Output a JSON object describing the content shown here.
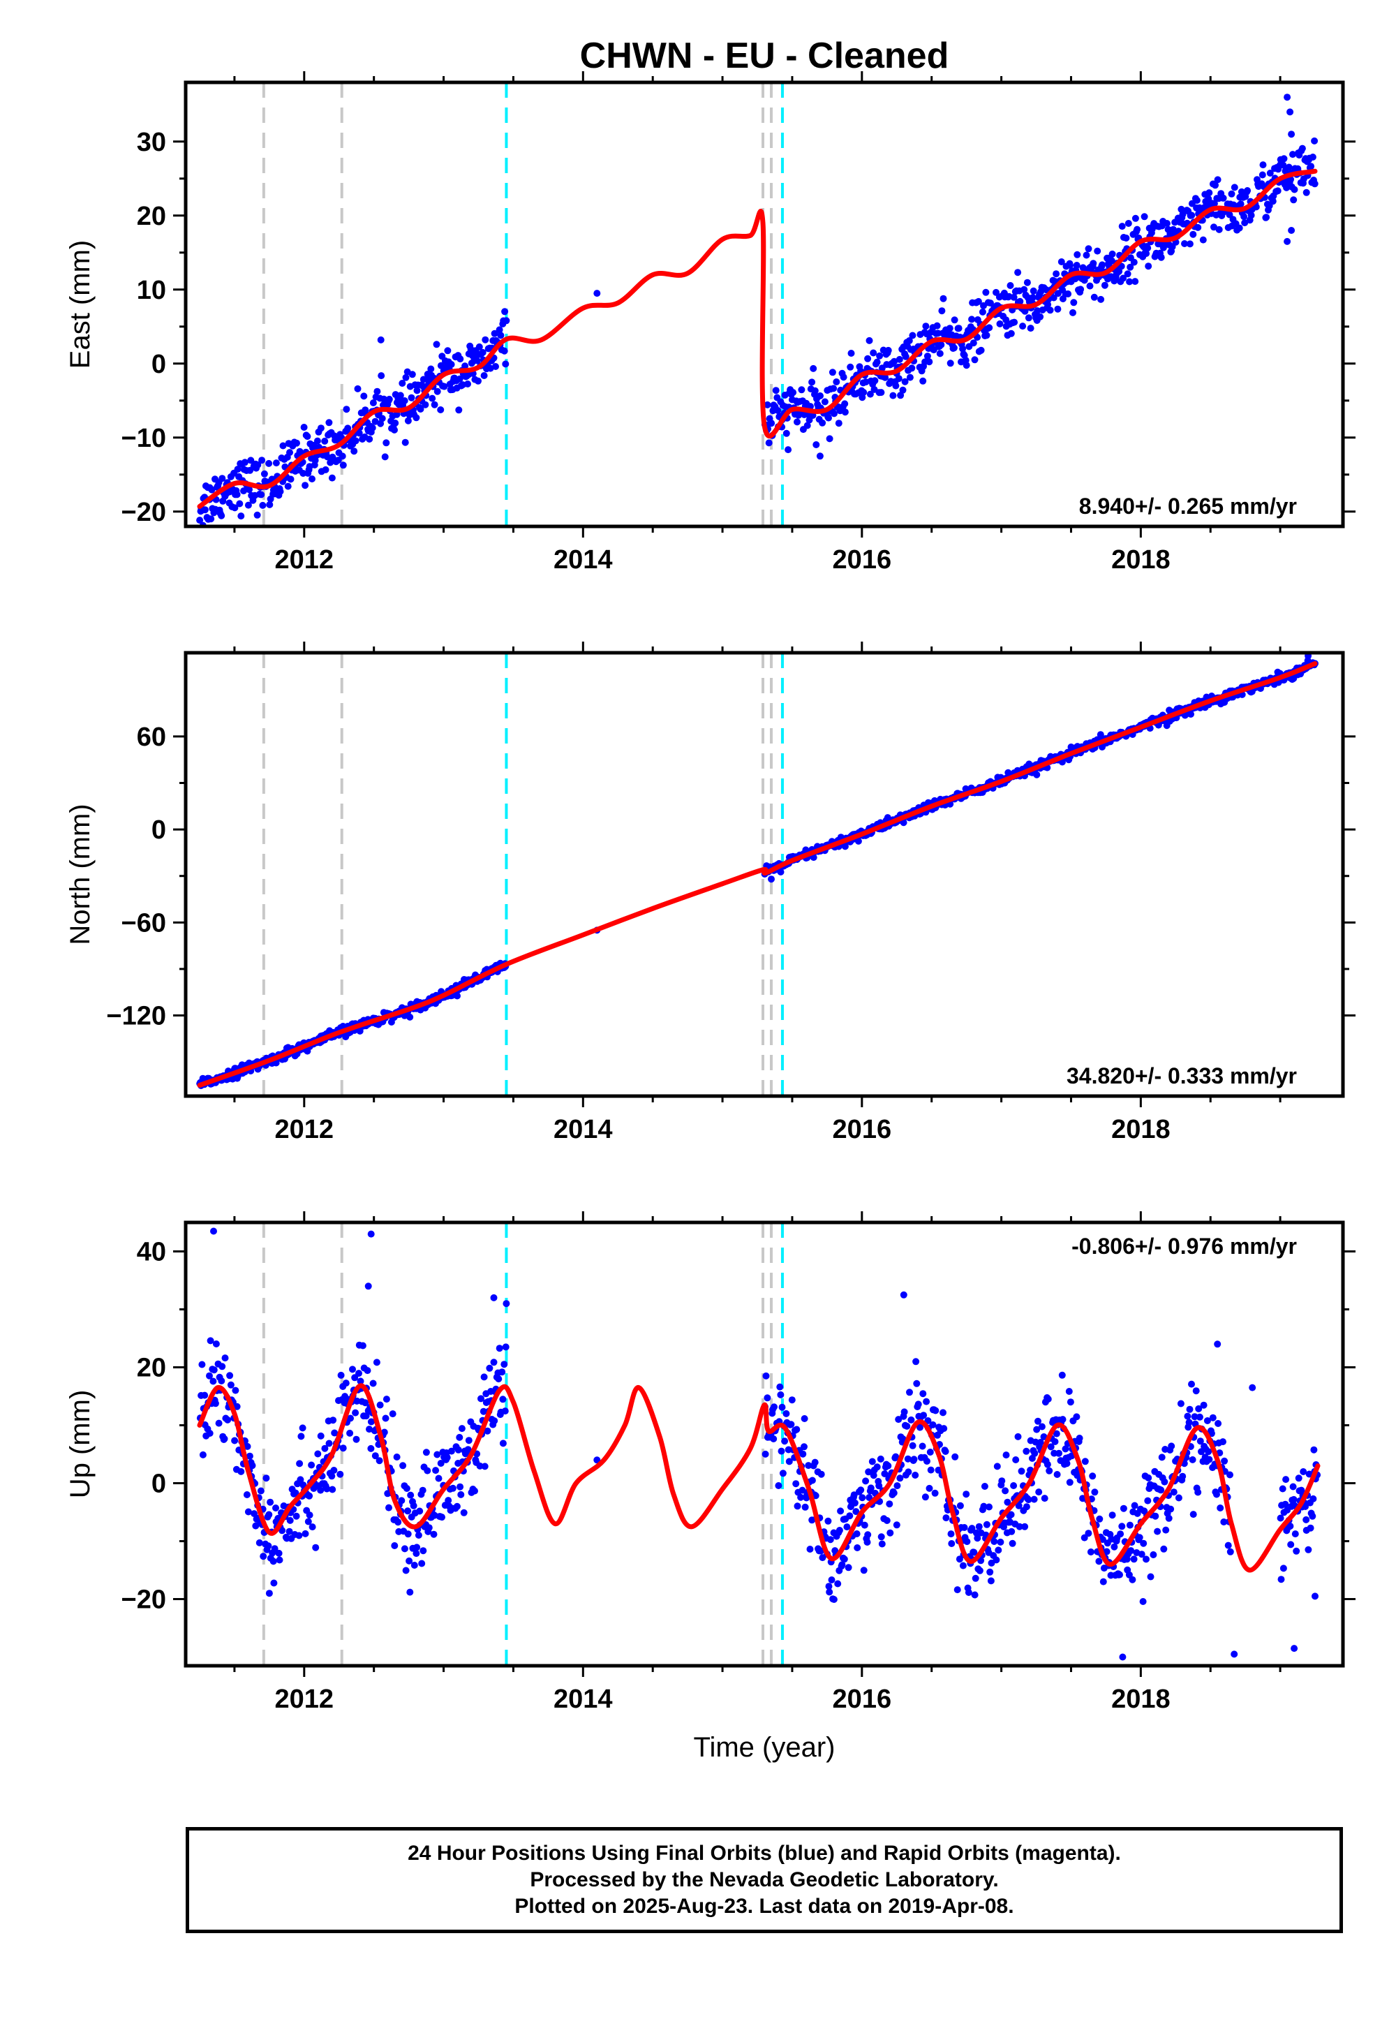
{
  "title": "CHWN  - EU - Cleaned",
  "xlabel": "Time (year)",
  "colors": {
    "final_points": "#0000ff",
    "model_fit": "#ff0000",
    "gray_marker": "#c8c8c8",
    "cyan_marker": "#00f0ff",
    "frame": "#000000"
  },
  "x_range": [
    2011.15,
    2019.45
  ],
  "x_ticks": [
    2012,
    2014,
    2016,
    2018
  ],
  "markers": {
    "gray": [
      2011.71,
      2012.27,
      2015.29,
      2015.35
    ],
    "cyan": [
      2013.45,
      2015.43
    ]
  },
  "chart_data": [
    {
      "type": "scatter",
      "name": "east",
      "ylabel": "East (mm)",
      "ylim": [
        -22,
        38
      ],
      "yticks": [
        -20,
        -10,
        0,
        10,
        20,
        30
      ],
      "ytick_labels": [
        "−20",
        "−10",
        "0",
        "10",
        "20",
        "30"
      ],
      "rate_label": "8.940+/- 0.265 mm/yr",
      "rate_position": "bottom-right",
      "trend": [
        {
          "x": 2011.25,
          "y": -19.3
        },
        {
          "x": 2011.5,
          "y": -16.2
        },
        {
          "x": 2011.75,
          "y": -16.5
        },
        {
          "x": 2012.0,
          "y": -12.5
        },
        {
          "x": 2012.25,
          "y": -11.0
        },
        {
          "x": 2012.5,
          "y": -6.5
        },
        {
          "x": 2012.75,
          "y": -6.0
        },
        {
          "x": 2013.0,
          "y": -1.5
        },
        {
          "x": 2013.25,
          "y": -0.5
        },
        {
          "x": 2013.45,
          "y": 3.3
        },
        {
          "x": 2013.7,
          "y": 3.2
        },
        {
          "x": 2014.0,
          "y": 7.5
        },
        {
          "x": 2014.25,
          "y": 8.2
        },
        {
          "x": 2014.5,
          "y": 12.0
        },
        {
          "x": 2014.75,
          "y": 12.2
        },
        {
          "x": 2015.0,
          "y": 16.8
        },
        {
          "x": 2015.2,
          "y": 17.3
        },
        {
          "x": 2015.29,
          "y": 19.0
        },
        {
          "x": 2015.3,
          "y": -8.3
        },
        {
          "x": 2015.5,
          "y": -6.2
        },
        {
          "x": 2015.75,
          "y": -6.2
        },
        {
          "x": 2016.0,
          "y": -1.5
        },
        {
          "x": 2016.25,
          "y": -1.0
        },
        {
          "x": 2016.5,
          "y": 3.0
        },
        {
          "x": 2016.75,
          "y": 3.3
        },
        {
          "x": 2017.0,
          "y": 7.5
        },
        {
          "x": 2017.25,
          "y": 8.0
        },
        {
          "x": 2017.5,
          "y": 12.0
        },
        {
          "x": 2017.75,
          "y": 12.3
        },
        {
          "x": 2018.0,
          "y": 16.5
        },
        {
          "x": 2018.25,
          "y": 17.0
        },
        {
          "x": 2018.5,
          "y": 20.8
        },
        {
          "x": 2018.75,
          "y": 21.0
        },
        {
          "x": 2019.0,
          "y": 25.0
        },
        {
          "x": 2019.25,
          "y": 26.0
        }
      ],
      "noise": 1.8,
      "gaps": [
        [
          2013.45,
          2015.3
        ]
      ],
      "extra_points": [
        {
          "x": 2014.1,
          "y": 9.5
        },
        {
          "x": 2012.55,
          "y": 3.2
        },
        {
          "x": 2013.45,
          "y": 5.8
        },
        {
          "x": 2019.05,
          "y": 36.0
        },
        {
          "x": 2019.07,
          "y": 34.0
        },
        {
          "x": 2019.08,
          "y": 31.0
        },
        {
          "x": 2019.05,
          "y": 16.5
        },
        {
          "x": 2019.08,
          "y": 18.0
        },
        {
          "x": 2015.7,
          "y": -12.5
        }
      ]
    },
    {
      "type": "scatter",
      "name": "north",
      "ylabel": "North (mm)",
      "ylim": [
        -172,
        114
      ],
      "yticks": [
        -120,
        -60,
        0,
        60
      ],
      "ytick_labels": [
        "−120",
        "−60",
        "0",
        "60"
      ],
      "rate_label": "34.820+/- 0.333 mm/yr",
      "rate_position": "bottom-right",
      "trend": [
        {
          "x": 2011.25,
          "y": -165
        },
        {
          "x": 2011.75,
          "y": -149
        },
        {
          "x": 2012.25,
          "y": -131
        },
        {
          "x": 2012.75,
          "y": -116
        },
        {
          "x": 2013.0,
          "y": -107
        },
        {
          "x": 2013.45,
          "y": -87
        },
        {
          "x": 2014.0,
          "y": -68
        },
        {
          "x": 2014.5,
          "y": -51
        },
        {
          "x": 2015.0,
          "y": -35
        },
        {
          "x": 2015.29,
          "y": -26
        },
        {
          "x": 2015.31,
          "y": -28
        },
        {
          "x": 2015.5,
          "y": -20
        },
        {
          "x": 2016.0,
          "y": -3
        },
        {
          "x": 2016.5,
          "y": 15
        },
        {
          "x": 2017.0,
          "y": 31
        },
        {
          "x": 2017.5,
          "y": 49
        },
        {
          "x": 2018.0,
          "y": 66
        },
        {
          "x": 2018.5,
          "y": 83
        },
        {
          "x": 2019.0,
          "y": 98
        },
        {
          "x": 2019.25,
          "y": 107
        }
      ],
      "noise": 1.6,
      "gaps": [
        [
          2013.45,
          2015.3
        ]
      ],
      "extra_points": [
        {
          "x": 2014.1,
          "y": -65
        },
        {
          "x": 2015.35,
          "y": -32
        },
        {
          "x": 2018.6,
          "y": 82
        },
        {
          "x": 2019.2,
          "y": 112
        }
      ]
    },
    {
      "type": "scatter",
      "name": "up",
      "ylabel": "Up (mm)",
      "ylim": [
        -31.5,
        45
      ],
      "yticks": [
        -20,
        0,
        20,
        40
      ],
      "ytick_labels": [
        "−20",
        "0",
        "20",
        "40"
      ],
      "rate_label": "-0.806+/- 0.976 mm/yr",
      "rate_position": "top-right",
      "trend": [
        {
          "x": 2011.25,
          "y": 10
        },
        {
          "x": 2011.38,
          "y": 16.5
        },
        {
          "x": 2011.5,
          "y": 12
        },
        {
          "x": 2011.6,
          "y": 2
        },
        {
          "x": 2011.75,
          "y": -8.5
        },
        {
          "x": 2011.9,
          "y": -4
        },
        {
          "x": 2012.05,
          "y": 0
        },
        {
          "x": 2012.2,
          "y": 5
        },
        {
          "x": 2012.4,
          "y": 16.8
        },
        {
          "x": 2012.55,
          "y": 8
        },
        {
          "x": 2012.65,
          "y": -3
        },
        {
          "x": 2012.8,
          "y": -7.5
        },
        {
          "x": 2013.0,
          "y": -1
        },
        {
          "x": 2013.2,
          "y": 5
        },
        {
          "x": 2013.4,
          "y": 16
        },
        {
          "x": 2013.5,
          "y": 14
        },
        {
          "x": 2013.65,
          "y": 2
        },
        {
          "x": 2013.8,
          "y": -7
        },
        {
          "x": 2013.95,
          "y": 0
        },
        {
          "x": 2014.15,
          "y": 4
        },
        {
          "x": 2014.3,
          "y": 10
        },
        {
          "x": 2014.4,
          "y": 16.5
        },
        {
          "x": 2014.55,
          "y": 8
        },
        {
          "x": 2014.65,
          "y": -2
        },
        {
          "x": 2014.78,
          "y": -7.5
        },
        {
          "x": 2015.0,
          "y": -1
        },
        {
          "x": 2015.2,
          "y": 6
        },
        {
          "x": 2015.3,
          "y": 13.5
        },
        {
          "x": 2015.33,
          "y": 9
        },
        {
          "x": 2015.45,
          "y": 9.5
        },
        {
          "x": 2015.62,
          "y": -1
        },
        {
          "x": 2015.78,
          "y": -13
        },
        {
          "x": 2016.0,
          "y": -5
        },
        {
          "x": 2016.2,
          "y": 0
        },
        {
          "x": 2016.4,
          "y": 10.5
        },
        {
          "x": 2016.55,
          "y": 5
        },
        {
          "x": 2016.65,
          "y": -5
        },
        {
          "x": 2016.78,
          "y": -13.5
        },
        {
          "x": 2017.0,
          "y": -6
        },
        {
          "x": 2017.2,
          "y": 0
        },
        {
          "x": 2017.4,
          "y": 10
        },
        {
          "x": 2017.55,
          "y": 4
        },
        {
          "x": 2017.65,
          "y": -6
        },
        {
          "x": 2017.78,
          "y": -14
        },
        {
          "x": 2018.0,
          "y": -7
        },
        {
          "x": 2018.2,
          "y": -1
        },
        {
          "x": 2018.4,
          "y": 9.5
        },
        {
          "x": 2018.55,
          "y": 4
        },
        {
          "x": 2018.65,
          "y": -7
        },
        {
          "x": 2018.78,
          "y": -15
        },
        {
          "x": 2019.0,
          "y": -8
        },
        {
          "x": 2019.15,
          "y": -3.5
        },
        {
          "x": 2019.27,
          "y": 3
        }
      ],
      "noise": 4.5,
      "gaps": [
        [
          2013.45,
          2015.3
        ],
        [
          2018.65,
          2019.0
        ]
      ],
      "extra_points": [
        {
          "x": 2011.35,
          "y": 43.5
        },
        {
          "x": 2012.48,
          "y": 43
        },
        {
          "x": 2012.46,
          "y": 34
        },
        {
          "x": 2013.36,
          "y": 32
        },
        {
          "x": 2013.45,
          "y": 31
        },
        {
          "x": 2014.1,
          "y": 4
        },
        {
          "x": 2016.3,
          "y": 32.5
        },
        {
          "x": 2018.8,
          "y": 16.5
        },
        {
          "x": 2018.55,
          "y": 24
        },
        {
          "x": 2018.67,
          "y": -29.5
        },
        {
          "x": 2019.1,
          "y": -28.5
        },
        {
          "x": 2019.25,
          "y": -19.5
        },
        {
          "x": 2017.87,
          "y": -30
        },
        {
          "x": 2011.75,
          "y": -19
        }
      ]
    }
  ],
  "footer": {
    "line1": "24 Hour Positions Using Final Orbits (blue) and Rapid Orbits (magenta).",
    "line2": "Processed by the Nevada Geodetic Laboratory.",
    "line3": "Plotted on 2025-Aug-23. Last data on 2019-Apr-08."
  }
}
